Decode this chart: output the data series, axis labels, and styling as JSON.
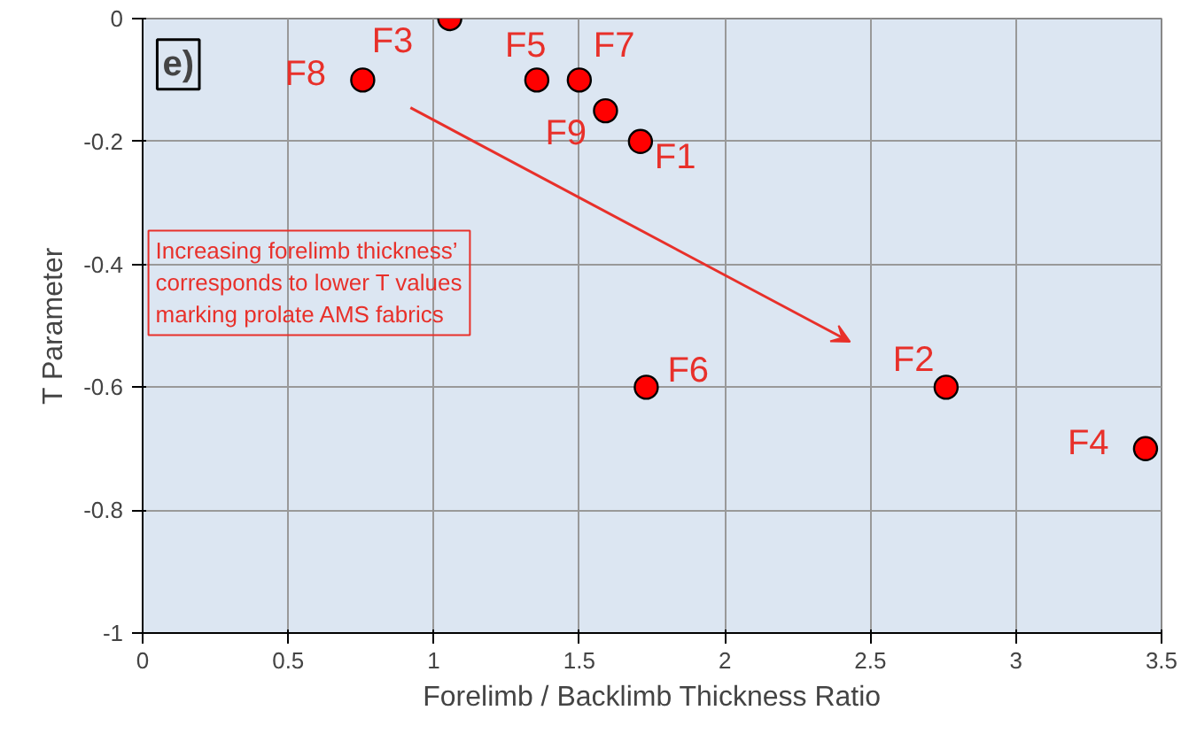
{
  "chart_data": {
    "type": "scatter",
    "xlabel": "Forelimb / Backlimb Thickness Ratio",
    "ylabel": "T Parameter",
    "x": [
      1.71,
      2.76,
      1.055,
      3.445,
      1.354,
      1.73,
      1.5,
      0.756,
      1.59
    ],
    "series": [
      {
        "color": "#ff0000",
        "values": [
          -0.2,
          -0.6,
          0.0,
          -0.7,
          -0.1,
          -0.6,
          -0.1,
          -0.1,
          -0.15
        ]
      }
    ],
    "marker": "circle",
    "grid": true,
    "xlim": [
      0,
      3.5
    ],
    "xticks": [
      0,
      0.5,
      1,
      1.5,
      2,
      2.5,
      3,
      3.5
    ],
    "ylim": [
      -1,
      0
    ],
    "yticks": [
      -1,
      -0.8,
      -0.6,
      -0.4,
      -0.2,
      0
    ],
    "annotations": [
      "e)",
      {
        "text": "F1",
        "x": 1.71,
        "y": -0.2
      },
      {
        "text": "F2",
        "x": 2.76,
        "y": -0.6
      },
      {
        "text": "F3",
        "x": 1.055,
        "y": 0.0
      },
      {
        "text": "F4",
        "x": 3.445,
        "y": -0.7
      },
      {
        "text": "F5",
        "x": 1.354,
        "y": -0.1
      },
      {
        "text": "F6",
        "x": 1.73,
        "y": -0.6
      },
      {
        "text": "F7",
        "x": 1.5,
        "y": -0.1
      },
      {
        "text": "F8",
        "x": 0.756,
        "y": -0.1
      },
      {
        "text": "F9",
        "x": 1.59,
        "y": -0.15
      },
      "Increasing forelimb thickness’\ncorresponds to lower T values\nmarking prolate AMS fabrics"
    ]
  }
}
